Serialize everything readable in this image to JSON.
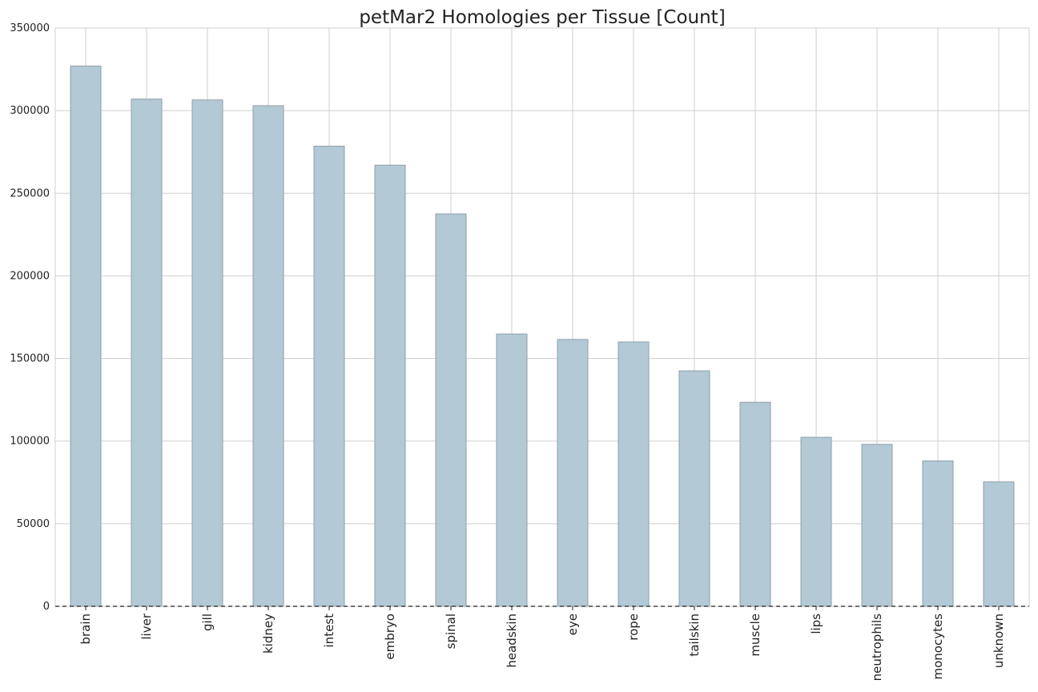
{
  "chart_data": {
    "type": "bar",
    "title": "petMar2 Homologies per Tissue [Count]",
    "xlabel": "",
    "ylabel": "",
    "categories": [
      "brain",
      "liver",
      "gill",
      "kidney",
      "intest",
      "embryo",
      "spinal",
      "headskin",
      "eye",
      "rope",
      "tailskin",
      "muscle",
      "lips",
      "neutrophils",
      "monocytes",
      "unknown"
    ],
    "values": [
      327000,
      307000,
      306500,
      303000,
      278500,
      267000,
      237500,
      164800,
      161500,
      160000,
      142500,
      123500,
      102300,
      98000,
      88000,
      75300
    ],
    "ylim": [
      0,
      350000
    ],
    "yticks": [
      0,
      50000,
      100000,
      150000,
      200000,
      250000,
      300000,
      350000
    ],
    "grid": true,
    "bar_color": "#b3c9d5",
    "bar_edge_color": "#8e9fa8"
  }
}
